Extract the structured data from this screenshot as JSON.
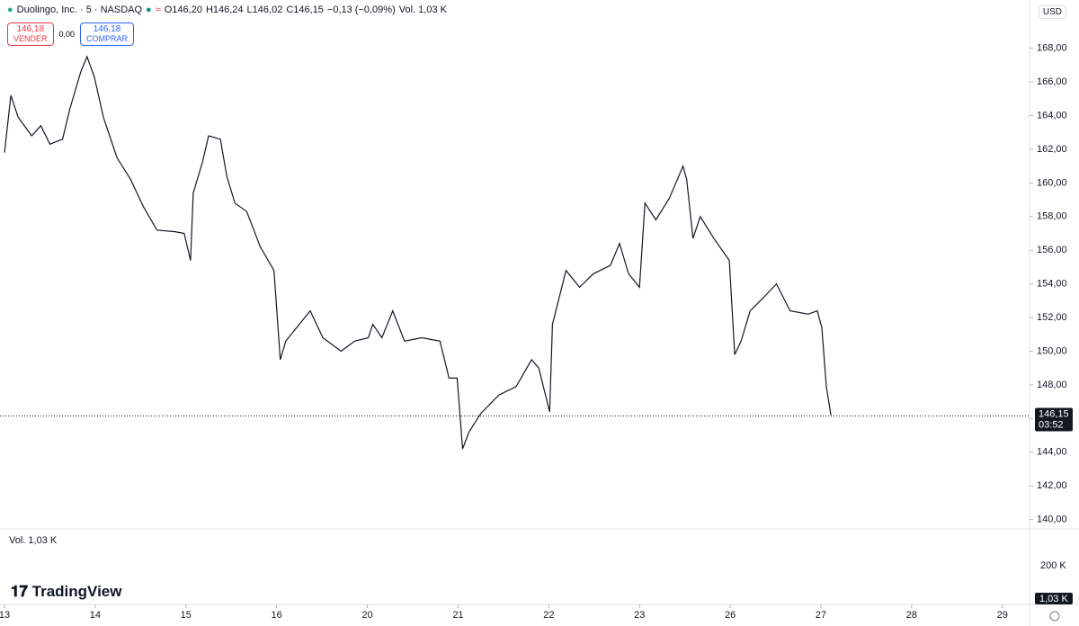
{
  "chart_data": {
    "type": "line",
    "color": "#131722",
    "header": {
      "symbol": "Duolingo, Inc. · 5 · NASDAQ",
      "open": "O146,20",
      "high": "H146,24",
      "low": "L146,02",
      "close": "C146,15",
      "change": "−0,13 (−0,09%)",
      "volume": "Vol. 1,03 K"
    },
    "buttons": {
      "sell_price": "146,18",
      "sell_label": "VENDER",
      "spread": "0,00",
      "buy_price": "146,18",
      "buy_label": "COMPRAR"
    },
    "currency": "USD",
    "last_price": {
      "value": 146.15,
      "label": "146,15"
    },
    "countdown": "03:52",
    "volume_pane": {
      "title": "Vol. 1,03 K",
      "tick": "200 K",
      "last": "1,03 K"
    },
    "brand": "TradingView",
    "x": [
      0,
      0.07,
      0.15,
      0.3,
      0.4,
      0.5,
      0.64,
      0.72,
      0.84,
      0.91,
      0.99,
      1.09,
      1.24,
      1.39,
      1.53,
      1.68,
      1.88,
      1.98,
      2.05,
      2.08,
      2.18,
      2.25,
      2.38,
      2.45,
      2.54,
      2.67,
      2.82,
      2.97,
      3.04,
      3.1,
      3.22,
      3.37,
      3.51,
      3.71,
      3.86,
      4.01,
      4.06,
      4.16,
      4.28,
      4.41,
      4.6,
      4.8,
      4.9,
      4.99,
      5.05,
      5.12,
      5.25,
      5.45,
      5.64,
      5.81,
      5.89,
      6.01,
      6.04,
      6.19,
      6.34,
      6.49,
      6.68,
      6.78,
      6.88,
      7.0,
      7.06,
      7.18,
      7.33,
      7.48,
      7.52,
      7.59,
      7.67,
      7.82,
      7.99,
      8.05,
      8.12,
      8.22,
      8.37,
      8.51,
      8.66,
      8.86,
      8.96,
      9.01,
      9.06,
      9.11
    ],
    "values": [
      161.8,
      165.2,
      163.9,
      162.8,
      163.4,
      162.3,
      162.6,
      164.4,
      166.6,
      167.5,
      166.3,
      163.9,
      161.5,
      160.2,
      158.6,
      157.2,
      157.1,
      157.0,
      155.4,
      159.4,
      161.2,
      162.8,
      162.6,
      160.4,
      158.8,
      158.3,
      156.2,
      154.8,
      149.5,
      150.6,
      151.4,
      152.4,
      150.8,
      150.0,
      150.6,
      150.8,
      151.6,
      150.8,
      152.4,
      150.6,
      150.8,
      150.6,
      148.4,
      148.4,
      144.2,
      145.2,
      146.3,
      147.4,
      147.9,
      149.5,
      149.0,
      146.4,
      151.6,
      154.8,
      153.8,
      154.6,
      155.1,
      156.4,
      154.6,
      153.8,
      158.8,
      157.8,
      159.1,
      161.0,
      160.2,
      156.7,
      158.0,
      156.7,
      155.4,
      149.8,
      150.6,
      152.4,
      153.2,
      154.0,
      152.4,
      152.2,
      152.4,
      151.4,
      147.9,
      146.2
    ],
    "xlim": [
      -0.05,
      11.3
    ],
    "xticks": [
      {
        "value": 0,
        "label": "13"
      },
      {
        "value": 1,
        "label": "14"
      },
      {
        "value": 2,
        "label": "15"
      },
      {
        "value": 3,
        "label": "16"
      },
      {
        "value": 4,
        "label": "20"
      },
      {
        "value": 5,
        "label": "21"
      },
      {
        "value": 6,
        "label": "22"
      },
      {
        "value": 7,
        "label": "23"
      },
      {
        "value": 8,
        "label": "26"
      },
      {
        "value": 9,
        "label": "27"
      },
      {
        "value": 10,
        "label": "28"
      },
      {
        "value": 11,
        "label": "29"
      }
    ],
    "ylim": [
      139.5,
      170.6
    ],
    "yticks": [
      {
        "value": 140,
        "label": "140,00"
      },
      {
        "value": 142,
        "label": "142,00"
      },
      {
        "value": 144,
        "label": "144,00"
      },
      {
        "value": 146,
        "label": "146,00"
      },
      {
        "value": 148,
        "label": "148,00"
      },
      {
        "value": 150,
        "label": "150,00"
      },
      {
        "value": 152,
        "label": "152,00"
      },
      {
        "value": 154,
        "label": "154,00"
      },
      {
        "value": 156,
        "label": "156,00"
      },
      {
        "value": 158,
        "label": "158,00"
      },
      {
        "value": 160,
        "label": "160,00"
      },
      {
        "value": 162,
        "label": "162,00"
      },
      {
        "value": 164,
        "label": "164,00"
      },
      {
        "value": 166,
        "label": "166,00"
      },
      {
        "value": 168,
        "label": "168,00"
      }
    ],
    "grid": false
  }
}
